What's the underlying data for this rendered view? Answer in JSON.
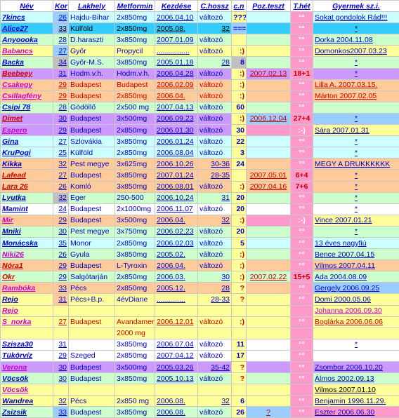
{
  "colors": {
    "blue_text": "#0000cc",
    "red_text": "#cc0000",
    "pink_text": "#cc00cc",
    "green_bg": "#ccffcc",
    "yellow_bg": "#ffff99",
    "cyan_bg": "#ccffff",
    "purple_bg": "#cc99ff",
    "orange_bg": "#ffcc99",
    "pink_bg": "#ff99cc",
    "lightblue_bg": "#99ccff",
    "gray_bg": "#c0c0c0",
    "aqua_bg": "#33ccff",
    "white_bg": "#ffffff"
  },
  "headers": [
    "Név",
    "Kor",
    "Lakhely",
    "Metformin",
    "Kezdése",
    "C.hossz",
    "c.n",
    "Poz.teszt",
    "T.hét",
    "Gyermek sz.i."
  ],
  "rows": [
    {
      "nev": "7kincs",
      "kor": "26",
      "lak": "Hajdu-Bihar",
      "met": "2x850mg",
      "kez": "2006.04.10",
      "chossz": "változó",
      "cn": "???",
      "poz": "",
      "thet": "°°",
      "gyer": "Sokat gondolok Rád!!!"
    },
    {
      "nev": "Alice27",
      "kor": "33",
      "lak": "Külföld",
      "met": "2x850mg",
      "kez": "2005.08.",
      "chossz": "32",
      "cn": "===",
      "poz": "",
      "thet": "°°",
      "gyer": "*"
    },
    {
      "nev": "Anyoooka",
      "kor": "28",
      "lak": "D.haraszti",
      "met": "3x850mg",
      "kez": "2007.01.09",
      "chossz": "változó",
      "cn": "",
      "poz": "",
      "thet": "°°",
      "gyer": "Dorka     2004.11.08"
    },
    {
      "nev": "Babancs",
      "kor": "27",
      "lak": "Győr",
      "met": "Propycil",
      "kez": "................",
      "chossz": "változó",
      "cn": ":)",
      "poz": "",
      "thet": "°°",
      "gyer": "Domonkos2007.03.23"
    },
    {
      "nev": "Backa",
      "kor": "34",
      "lak": "Győr-M.S.",
      "met": "3x850mg",
      "kez": "2005.01.18",
      "chossz": "28",
      "cn": "8",
      "poz": "",
      "thet": "°°",
      "gyer": "*"
    },
    {
      "nev": "Beebeey",
      "kor": "31",
      "lak": "Hodm.v.h.",
      "met": "Hodm.v.h.",
      "kez": "2006.04.28",
      "chossz": "változó",
      "cn": ":)",
      "poz": "2007.02.13",
      "thet": "18+1",
      "gyer": "*"
    },
    {
      "nev": "Csakegy",
      "kor": "29",
      "lak": "Budapest",
      "met": "Budapest",
      "kez": "2006.02.09",
      "chossz": "változó",
      "cn": ":)",
      "poz": "",
      "thet": "°°",
      "gyer": "Lilla A.    2007.03.15."
    },
    {
      "nev": "Csillagfény",
      "kor": "29",
      "lak": "Budapest",
      "met": "2x850mg",
      "kez": "2006.04.",
      "chossz": "változó",
      "cn": ":)",
      "poz": "",
      "thet": "°°",
      "gyer": "Márton    2007.02.05"
    },
    {
      "nev": "Csipi 78",
      "kor": "28",
      "lak": "Gödöllő",
      "met": "2x500 mg",
      "kez": "2007.04.13",
      "chossz": "változó",
      "cn": "60",
      "poz": "",
      "thet": "°°",
      "gyer": ""
    },
    {
      "nev": "Dimet",
      "kor": "30",
      "lak": "Budapest",
      "met": "3x500mg",
      "kez": "2006.09.23",
      "chossz": "változó",
      "cn": ":)",
      "poz": "2006.12.04",
      "thet": "27+4",
      "gyer": "*"
    },
    {
      "nev": "Espero",
      "kor": "29",
      "lak": "Budapest",
      "met": "2x850mg",
      "kez": "2006.01.30",
      "chossz": "változó",
      "cn": "30",
      "poz": "",
      "thet": ":-)",
      "gyer": "Sára        2007.01.31"
    },
    {
      "nev": "Gina",
      "kor": "27",
      "lak": "Szlovákia",
      "met": "3x850mg",
      "kez": "2006.01.24",
      "chossz": "változó",
      "cn": "22",
      "poz": "",
      "thet": "°°",
      "gyer": "*"
    },
    {
      "nev": "KruPogi",
      "kor": "25",
      "lak": "Külföld",
      "met": "2x850mg",
      "kez": "2006.08.04",
      "chossz": "változó",
      "cn": "3",
      "poz": "",
      "thet": "°°",
      "gyer": "*"
    },
    {
      "nev": "Kikka",
      "kor": "32",
      "lak": "Pest megye",
      "met": "3x625mg",
      "kez": "2006.10.26",
      "chossz": "30-36",
      "cn": "24",
      "poz": "",
      "thet": "°°",
      "gyer": "MEGY A DRUKKKKKK"
    },
    {
      "nev": "Lafead",
      "kor": "27",
      "lak": "Budapest",
      "met": "3x850mg",
      "kez": "2007.01.24",
      "chossz": "28-35",
      "cn": "",
      "poz": "2007.05.01",
      "thet": "6+4",
      "gyer": "*"
    },
    {
      "nev": "Lara 26",
      "kor": "26",
      "lak": "Komló",
      "met": "3x850mg",
      "kez": "2006.08.01",
      "chossz": "változó",
      "cn": ":)",
      "poz": "2007.04.16",
      "thet": "7+6",
      "gyer": "*"
    },
    {
      "nev": "Lyutka",
      "kor": "32",
      "lak": "Eger",
      "met": "250-500",
      "kez": "2006.10.24",
      "chossz": "31",
      "cn": "20",
      "poz": "",
      "thet": "°°",
      "gyer": "*"
    },
    {
      "nev": "Mamint",
      "kor": "24",
      "lak": "Budapest",
      "met": "2x1000mg",
      "kez": "2006.11.07",
      "chossz": "változó",
      "cn": "20",
      "poz": "",
      "thet": "°°",
      "gyer": "*"
    },
    {
      "nev": "Mir",
      "kor": "29",
      "lak": "Budapest",
      "met": "3x500mg",
      "kez": "2006.04.",
      "chossz": "32",
      "cn": ":)",
      "poz": "",
      "thet": ":-)",
      "gyer": "Vince      2007.01.21"
    },
    {
      "nev": "Mniki",
      "kor": "30",
      "lak": "Pest megye",
      "met": "3x750mg",
      "kez": "2006.02.23",
      "chossz": "változó",
      "cn": "20",
      "poz": "",
      "thet": "°°",
      "gyer": "*"
    },
    {
      "nev": "Monácska",
      "kor": "35",
      "lak": "Monor",
      "met": "2x850mg",
      "kez": "2006.02.03",
      "chossz": "változó",
      "cn": "5",
      "poz": "",
      "thet": "°°",
      "gyer": "13 éves nagyfiú"
    },
    {
      "nev": "Niki26",
      "kor": "26",
      "lak": "Gyula",
      "met": "3x850mg",
      "kez": "2005.02.",
      "chossz": "változó",
      "cn": ":)",
      "poz": "",
      "thet": "°°",
      "gyer": "Bence 2007.04.15"
    },
    {
      "nev": "Nóra1",
      "kor": "29",
      "lak": "Budapest",
      "met": "L-Tyroxin",
      "kez": "2006.04.",
      "chossz": "változó",
      "cn": ":)",
      "poz": "",
      "thet": "°°",
      "gyer": "Vilmos    2007.04.11"
    },
    {
      "nev": "Okr",
      "kor": "29",
      "lak": "Salgótarján",
      "met": "2x850mg",
      "kez": "2006.03.",
      "chossz": "30",
      "cn": ":)",
      "poz": "2007.02.22",
      "thet": "15+5",
      "gyer": "Ada          2004.08.09"
    },
    {
      "nev": "Rambóka",
      "kor": "33",
      "lak": "Pécs",
      "met": "2x850mg",
      "kez": "2005.12.",
      "chossz": "28",
      "cn": "?",
      "poz": "",
      "thet": "°°",
      "gyer": "Gergely   2006.09.25"
    },
    {
      "nev": "Rejo",
      "kor": "31",
      "lak": "Pécs+B.p.",
      "met": "4évDiane",
      "kez": "..............",
      "chossz": "28-33",
      "cn": "?",
      "poz": "",
      "thet": "°°",
      "gyer": "Domi       2000.05.06"
    },
    {
      "nev": "Rejo",
      "kor": "",
      "lak": "",
      "met": "",
      "kez": "",
      "chossz": "",
      "cn": "",
      "poz": "",
      "thet": "",
      "gyer": "Johanna   2006.09.30"
    },
    {
      "nev": "S_norka",
      "kor": "27",
      "lak": "Budapest",
      "met": "Avandament",
      "kez": "2006.12.01",
      "chossz": "változó",
      "cn": ":)",
      "poz": "",
      "thet": "°°",
      "gyer": "Boglárka 2006.06.06"
    },
    {
      "nev": "",
      "kor": "",
      "lak": "",
      "met": "2000 mg",
      "kez": "",
      "chossz": "",
      "cn": "",
      "poz": "",
      "thet": "",
      "gyer": ""
    },
    {
      "nev": "Szisza30",
      "kor": "31",
      "lak": "",
      "met": "3x850mg",
      "kez": "2006.07.04",
      "chossz": "változó",
      "cn": "11",
      "poz": "",
      "thet": "°°",
      "gyer": "*"
    },
    {
      "nev": "Tükörvíz",
      "kor": "29",
      "lak": "Szeged",
      "met": "2x850mg",
      "kez": "2007.04.12",
      "chossz": "változó",
      "cn": "17",
      "poz": "",
      "thet": "°°",
      "gyer": ""
    },
    {
      "nev": "Verona",
      "kor": "30",
      "lak": "Budapest",
      "met": "3x500mg",
      "kez": "2005.03.26",
      "chossz": "35-42",
      "cn": "?",
      "poz": "",
      "thet": "°°",
      "gyer": "Zsombor  2006.10.20"
    },
    {
      "nev": "Vöcsök",
      "kor": "30",
      "lak": "Budapest",
      "met": "3x850mg",
      "kez": "2005.10.13",
      "chossz": "változó",
      "cn": "?",
      "poz": "",
      "thet": "°°",
      "gyer": "Álmos     2002.09.13"
    },
    {
      "nev": "Vöcsök",
      "kor": "",
      "lak": "",
      "met": "",
      "kez": "",
      "chossz": "",
      "cn": "",
      "poz": "",
      "thet": "",
      "gyer": "Vilmos     2007.01.10"
    },
    {
      "nev": "Wandrea",
      "kor": "32",
      "lak": "Pécs",
      "met": "2x850 mg",
      "kez": "2006.08.",
      "chossz": "32",
      "cn": "6",
      "poz": "",
      "thet": "°°",
      "gyer": "Benjamin 1996.11.29."
    },
    {
      "nev": "Zsizsik",
      "kor": "33",
      "lak": "Budapest",
      "met": "3x850mg",
      "kez": "2006.08.",
      "chossz": "változó",
      "cn": "26",
      "poz": "?",
      "thet": "°°",
      "gyer": "Eszter     2006.06.30"
    }
  ]
}
